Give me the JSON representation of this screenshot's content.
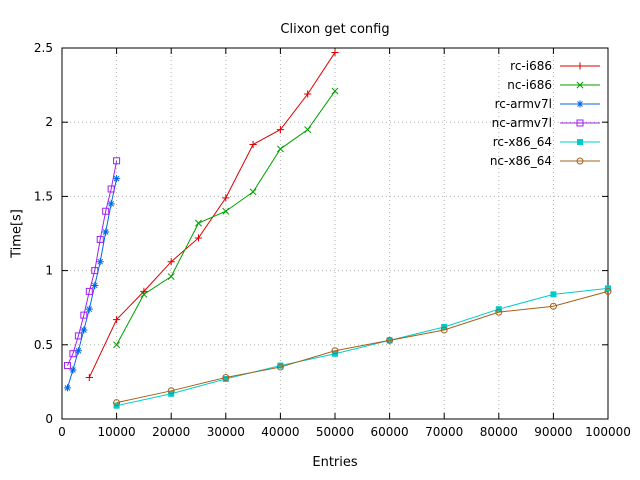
{
  "chart_data": {
    "type": "line",
    "title": "Clixon get config",
    "xlabel": "Entries",
    "ylabel": "Time[s]",
    "xlim": [
      0,
      100000
    ],
    "ylim": [
      0,
      2.5
    ],
    "xticks": [
      0,
      10000,
      20000,
      30000,
      40000,
      50000,
      60000,
      70000,
      80000,
      90000,
      100000
    ],
    "yticks": [
      0,
      0.5,
      1,
      1.5,
      2,
      2.5
    ],
    "grid": true,
    "legend_position": "top-right",
    "colors": {
      "axis": "#000000",
      "grid": "#b0b0b0",
      "background": "#ffffff"
    },
    "series": [
      {
        "name": "rc-i686",
        "color": "#dd0000",
        "marker": "plus",
        "x": [
          5000,
          10000,
          15000,
          20000,
          25000,
          30000,
          35000,
          40000,
          45000,
          50000
        ],
        "y": [
          0.28,
          0.67,
          0.86,
          1.06,
          1.22,
          1.49,
          1.85,
          1.95,
          2.19,
          2.47
        ]
      },
      {
        "name": "nc-i686",
        "color": "#00a000",
        "marker": "cross",
        "x": [
          10000,
          15000,
          20000,
          25000,
          30000,
          35000,
          40000,
          45000,
          50000
        ],
        "y": [
          0.5,
          0.84,
          0.96,
          1.32,
          1.4,
          1.53,
          1.82,
          1.95,
          2.21
        ]
      },
      {
        "name": "rc-armv7l",
        "color": "#0066e8",
        "marker": "asterisk",
        "x": [
          1000,
          2000,
          3000,
          4000,
          5000,
          6000,
          7000,
          8000,
          9000,
          10000
        ],
        "y": [
          0.21,
          0.33,
          0.46,
          0.6,
          0.74,
          0.9,
          1.06,
          1.26,
          1.45,
          1.62
        ]
      },
      {
        "name": "nc-armv7l",
        "color": "#a020f0",
        "marker": "square-open",
        "x": [
          1000,
          2000,
          3000,
          4000,
          5000,
          6000,
          7000,
          8000,
          9000,
          10000
        ],
        "y": [
          0.36,
          0.44,
          0.56,
          0.7,
          0.86,
          1.0,
          1.21,
          1.4,
          1.55,
          1.74
        ]
      },
      {
        "name": "rc-x86_64",
        "color": "#00cccc",
        "marker": "square-filled",
        "x": [
          10000,
          20000,
          30000,
          40000,
          50000,
          60000,
          70000,
          80000,
          90000,
          100000
        ],
        "y": [
          0.09,
          0.17,
          0.27,
          0.36,
          0.44,
          0.53,
          0.62,
          0.74,
          0.84,
          0.88
        ]
      },
      {
        "name": "nc-x86_64",
        "color": "#a6611a",
        "marker": "circle-open",
        "x": [
          10000,
          20000,
          30000,
          40000,
          50000,
          60000,
          70000,
          80000,
          90000,
          100000
        ],
        "y": [
          0.11,
          0.19,
          0.28,
          0.35,
          0.46,
          0.53,
          0.6,
          0.72,
          0.76,
          0.86
        ]
      }
    ]
  }
}
